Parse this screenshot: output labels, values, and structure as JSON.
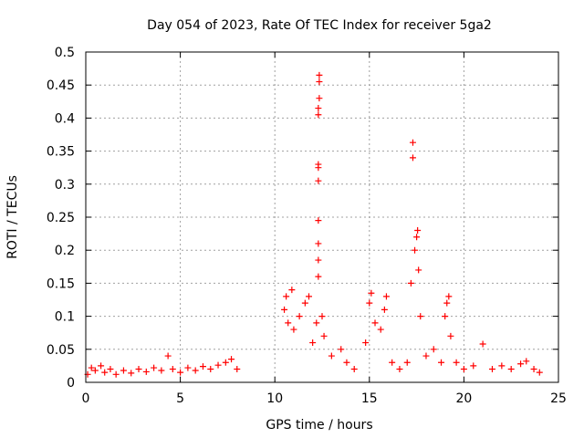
{
  "chart_data": {
    "type": "scatter",
    "title": "Day 054 of 2023, Rate Of TEC Index for receiver 5ga2",
    "xlabel": "GPS time / hours",
    "ylabel": "ROTI / TECUs",
    "xlim": [
      0,
      25
    ],
    "ylim": [
      0,
      0.5
    ],
    "xticks": [
      0,
      5,
      10,
      15,
      20,
      25
    ],
    "yticks": [
      0,
      0.05,
      0.1,
      0.15,
      0.2,
      0.25,
      0.3,
      0.35,
      0.4,
      0.45,
      0.5
    ],
    "grid": true,
    "marker": "+",
    "color": "#ff0000",
    "series": [
      {
        "points": [
          [
            0.1,
            0.012
          ],
          [
            0.3,
            0.022
          ],
          [
            0.5,
            0.018
          ],
          [
            0.8,
            0.025
          ],
          [
            1.0,
            0.015
          ],
          [
            1.3,
            0.02
          ],
          [
            1.6,
            0.012
          ],
          [
            2.0,
            0.018
          ],
          [
            2.4,
            0.014
          ],
          [
            2.8,
            0.02
          ],
          [
            3.2,
            0.016
          ],
          [
            3.6,
            0.022
          ],
          [
            4.0,
            0.018
          ],
          [
            4.35,
            0.04
          ],
          [
            4.6,
            0.02
          ],
          [
            5.0,
            0.015
          ],
          [
            5.4,
            0.022
          ],
          [
            5.8,
            0.018
          ],
          [
            6.2,
            0.024
          ],
          [
            6.6,
            0.02
          ],
          [
            7.0,
            0.026
          ],
          [
            7.4,
            0.03
          ],
          [
            7.7,
            0.035
          ],
          [
            8.0,
            0.02
          ],
          [
            10.5,
            0.11
          ],
          [
            10.6,
            0.13
          ],
          [
            10.7,
            0.09
          ],
          [
            10.9,
            0.14
          ],
          [
            11.0,
            0.08
          ],
          [
            11.3,
            0.1
          ],
          [
            11.6,
            0.12
          ],
          [
            11.8,
            0.13
          ],
          [
            12.0,
            0.06
          ],
          [
            12.2,
            0.09
          ],
          [
            12.3,
            0.16
          ],
          [
            12.3,
            0.185
          ],
          [
            12.3,
            0.21
          ],
          [
            12.3,
            0.245
          ],
          [
            12.3,
            0.305
          ],
          [
            12.3,
            0.325
          ],
          [
            12.3,
            0.33
          ],
          [
            12.3,
            0.405
          ],
          [
            12.3,
            0.415
          ],
          [
            12.35,
            0.43
          ],
          [
            12.35,
            0.455
          ],
          [
            12.35,
            0.465
          ],
          [
            12.5,
            0.1
          ],
          [
            12.6,
            0.07
          ],
          [
            13.0,
            0.04
          ],
          [
            13.5,
            0.05
          ],
          [
            13.8,
            0.03
          ],
          [
            14.2,
            0.02
          ],
          [
            14.8,
            0.06
          ],
          [
            15.0,
            0.12
          ],
          [
            15.1,
            0.135
          ],
          [
            15.3,
            0.09
          ],
          [
            15.6,
            0.08
          ],
          [
            15.8,
            0.11
          ],
          [
            15.9,
            0.13
          ],
          [
            16.2,
            0.03
          ],
          [
            16.6,
            0.02
          ],
          [
            17.0,
            0.03
          ],
          [
            17.2,
            0.15
          ],
          [
            17.3,
            0.34
          ],
          [
            17.3,
            0.363
          ],
          [
            17.4,
            0.2
          ],
          [
            17.5,
            0.22
          ],
          [
            17.55,
            0.23
          ],
          [
            17.6,
            0.17
          ],
          [
            17.7,
            0.1
          ],
          [
            18.0,
            0.04
          ],
          [
            18.4,
            0.05
          ],
          [
            18.8,
            0.03
          ],
          [
            19.0,
            0.1
          ],
          [
            19.1,
            0.12
          ],
          [
            19.2,
            0.13
          ],
          [
            19.3,
            0.07
          ],
          [
            19.6,
            0.03
          ],
          [
            20.0,
            0.02
          ],
          [
            20.5,
            0.025
          ],
          [
            21.0,
            0.058
          ],
          [
            21.5,
            0.02
          ],
          [
            22.0,
            0.025
          ],
          [
            22.5,
            0.02
          ],
          [
            23.0,
            0.028
          ],
          [
            23.3,
            0.032
          ],
          [
            23.7,
            0.02
          ],
          [
            24.0,
            0.015
          ]
        ]
      }
    ]
  }
}
